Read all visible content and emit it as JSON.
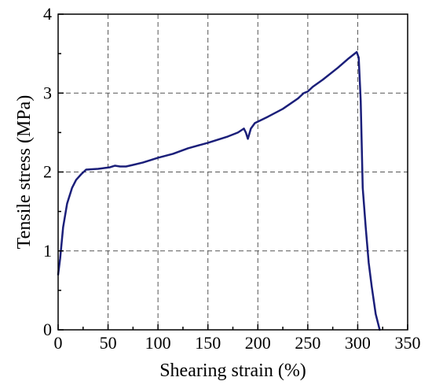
{
  "chart_data": {
    "type": "line",
    "xlabel": "Shearing strain (%)",
    "ylabel": "Tensile stress (MPa)",
    "xlim": [
      0,
      350
    ],
    "ylim": [
      0,
      4
    ],
    "x_ticks": [
      0,
      50,
      100,
      150,
      200,
      250,
      300,
      350
    ],
    "y_ticks": [
      0,
      1,
      2,
      3,
      4
    ],
    "x_tick_labels": [
      "0",
      "50",
      "100",
      "150",
      "200",
      "250",
      "300",
      "350"
    ],
    "y_tick_labels": [
      "0",
      "1",
      "2",
      "3",
      "4"
    ],
    "grid": true,
    "legend": "none",
    "line_color": "#1b1f7a",
    "series": [
      {
        "values": [
          [
            0,
            0.7
          ],
          [
            2,
            0.9
          ],
          [
            5,
            1.3
          ],
          [
            9,
            1.6
          ],
          [
            14,
            1.8
          ],
          [
            18,
            1.9
          ],
          [
            23,
            1.97
          ],
          [
            28,
            2.03
          ],
          [
            40,
            2.04
          ],
          [
            52,
            2.06
          ],
          [
            57,
            2.08
          ],
          [
            62,
            2.07
          ],
          [
            68,
            2.07
          ],
          [
            75,
            2.09
          ],
          [
            85,
            2.12
          ],
          [
            100,
            2.18
          ],
          [
            115,
            2.23
          ],
          [
            130,
            2.3
          ],
          [
            150,
            2.37
          ],
          [
            170,
            2.45
          ],
          [
            180,
            2.5
          ],
          [
            186,
            2.55
          ],
          [
            188,
            2.5
          ],
          [
            190,
            2.42
          ],
          [
            193,
            2.55
          ],
          [
            197,
            2.62
          ],
          [
            210,
            2.7
          ],
          [
            225,
            2.8
          ],
          [
            240,
            2.93
          ],
          [
            246,
            3.0
          ],
          [
            250,
            3.02
          ],
          [
            255,
            3.08
          ],
          [
            265,
            3.17
          ],
          [
            280,
            3.32
          ],
          [
            290,
            3.43
          ],
          [
            296,
            3.49
          ],
          [
            299,
            3.52
          ],
          [
            301,
            3.45
          ],
          [
            303,
            2.9
          ],
          [
            305,
            1.8
          ],
          [
            308,
            1.3
          ],
          [
            311,
            0.85
          ],
          [
            314,
            0.55
          ],
          [
            318,
            0.2
          ],
          [
            322,
            0.0
          ]
        ]
      }
    ]
  }
}
